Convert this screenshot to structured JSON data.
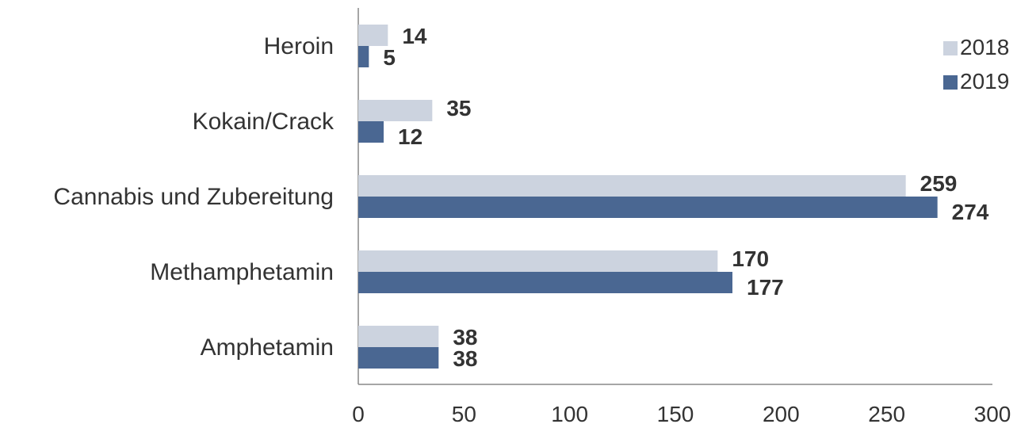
{
  "chart_data": {
    "type": "bar",
    "orientation": "horizontal",
    "categories": [
      "Heroin",
      "Kokain/Crack",
      "Cannabis und Zubereitung",
      "Methamphetamin",
      "Amphetamin"
    ],
    "series": [
      {
        "name": "2018",
        "values": [
          14,
          35,
          259,
          170,
          38
        ],
        "color": "#ccd3df"
      },
      {
        "name": "2019",
        "values": [
          5,
          12,
          274,
          177,
          38
        ],
        "color": "#4a6792"
      }
    ],
    "xticks": [
      "0",
      "50",
      "100",
      "150",
      "200",
      "250",
      "300"
    ],
    "xlim": [
      0,
      300
    ],
    "grid": false,
    "legend": "top-right"
  }
}
